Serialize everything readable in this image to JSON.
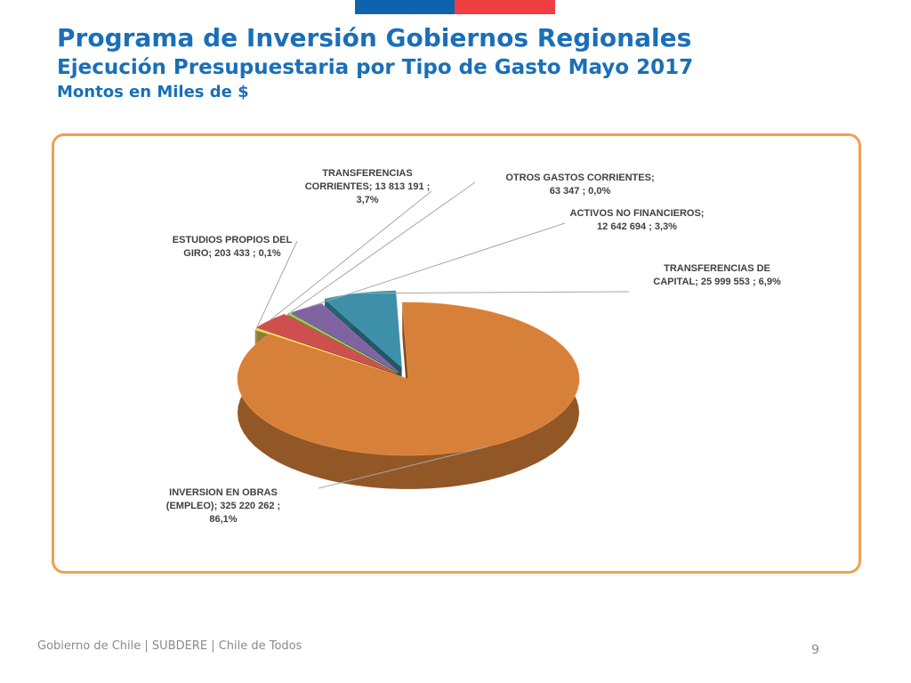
{
  "header": {
    "title": "Programa de Inversión Gobiernos Regionales",
    "subtitle": "Ejecución Presupuestaria por Tipo de Gasto Mayo 2017",
    "units": "Montos en Miles de $"
  },
  "chart_data": {
    "type": "pie",
    "title": "",
    "style": "3d-exploded",
    "slices": [
      {
        "label": "INVERSION EN OBRAS (EMPLEO)",
        "value": 325220262,
        "percent": 86.1,
        "value_text": "325 220 262",
        "percent_text": "86,1%",
        "color": "#d6803a",
        "label_lines": [
          "INVERSION EN OBRAS",
          "(EMPLEO);  325 220 262 ;",
          "86,1%"
        ]
      },
      {
        "label": "ESTUDIOS PROPIOS DEL GIRO",
        "value": 203433,
        "percent": 0.1,
        "value_text": "203 433",
        "percent_text": "0,1%",
        "color": "#f0d060",
        "label_lines": [
          "ESTUDIOS PROPIOS DEL",
          "GIRO;  203 433 ; 0,1%"
        ]
      },
      {
        "label": "TRANSFERENCIAS CORRIENTES",
        "value": 13813191,
        "percent": 3.7,
        "value_text": "13 813 191",
        "percent_text": "3,7%",
        "color": "#cf4f4f",
        "label_lines": [
          "TRANSFERENCIAS",
          "CORRIENTES;  13 813 191 ;",
          "3,7%"
        ]
      },
      {
        "label": "OTROS GASTOS CORRIENTES",
        "value": 63347,
        "percent": 0.0,
        "value_text": "63 347",
        "percent_text": "0,0%",
        "color": "#9bbb59",
        "label_lines": [
          "OTROS GASTOS CORRIENTES;",
          "63 347 ; 0,0%"
        ]
      },
      {
        "label": "ACTIVOS NO FINANCIEROS",
        "value": 12642694,
        "percent": 3.3,
        "value_text": "12 642 694",
        "percent_text": "3,3%",
        "color": "#8064a2",
        "label_lines": [
          "ACTIVOS NO FINANCIEROS;",
          "12 642 694 ; 3,3%"
        ]
      },
      {
        "label": "TRANSFERENCIAS DE CAPITAL",
        "value": 25999553,
        "percent": 6.9,
        "value_text": "25 999 553",
        "percent_text": "6,9%",
        "color": "#3e8fa8",
        "label_lines": [
          "TRANSFERENCIAS DE",
          "CAPITAL;  25 999 553 ; 6,9%"
        ]
      }
    ]
  },
  "footer": {
    "text": "Gobierno de Chile | SUBDERE | Chile de Todos",
    "page_number": "9"
  }
}
